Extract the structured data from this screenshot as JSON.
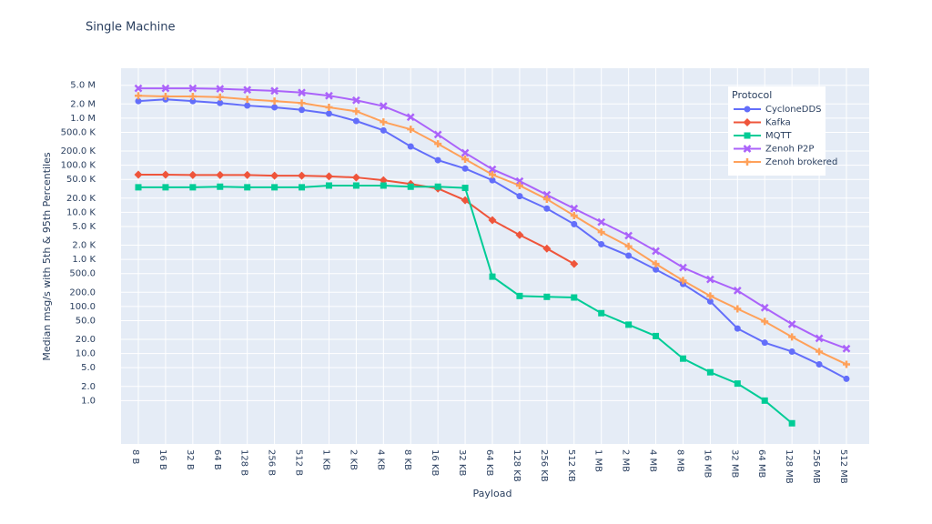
{
  "chart_data": {
    "type": "line",
    "title": "Single Machine",
    "x_label": "Payload",
    "y_label": "Median msg/s with 5th & 95th Percentiles",
    "log_y": true,
    "grid": true,
    "legend_title": "Protocol",
    "legend_position": "top-right",
    "categories": [
      "8 B",
      "16 B",
      "32 B",
      "64 B",
      "128 B",
      "256 B",
      "512 B",
      "1 KB",
      "2 KB",
      "4 KB",
      "8 KB",
      "16 KB",
      "32 KB",
      "64 KB",
      "128 KB",
      "256 KB",
      "512 KB",
      "1 MB",
      "2 MB",
      "4 MB",
      "8 MB",
      "16 MB",
      "32 MB",
      "64 MB",
      "128 MB",
      "256 MB",
      "512 MB"
    ],
    "ylim": [
      0.12,
      11500000
    ],
    "yticks": [
      {
        "value": 5000000,
        "label": "5.0 M"
      },
      {
        "value": 2000000,
        "label": "2.0 M"
      },
      {
        "value": 1000000,
        "label": "1.0 M"
      },
      {
        "value": 500000,
        "label": "500.0 K"
      },
      {
        "value": 200000,
        "label": "200.0 K"
      },
      {
        "value": 100000,
        "label": "100.0 K"
      },
      {
        "value": 50000,
        "label": "50.0 K"
      },
      {
        "value": 20000,
        "label": "20.0 K"
      },
      {
        "value": 10000,
        "label": "10.0 K"
      },
      {
        "value": 5000,
        "label": "5.0 K"
      },
      {
        "value": 2000,
        "label": "2.0 K"
      },
      {
        "value": 1000,
        "label": "1.0 K"
      },
      {
        "value": 500,
        "label": "500.0"
      },
      {
        "value": 200,
        "label": "200.0"
      },
      {
        "value": 100,
        "label": "100.0"
      },
      {
        "value": 50,
        "label": "50.0"
      },
      {
        "value": 20,
        "label": "20.0"
      },
      {
        "value": 10,
        "label": "10.0"
      },
      {
        "value": 5,
        "label": "5.0"
      },
      {
        "value": 2,
        "label": "2.0"
      },
      {
        "value": 1,
        "label": "1.0"
      }
    ],
    "series": [
      {
        "name": "CycloneDDS",
        "color": "#636efa",
        "marker": "circle",
        "values": [
          2300000,
          2500000,
          2300000,
          2100000,
          1850000,
          1700000,
          1500000,
          1250000,
          870000,
          550000,
          250000,
          128000,
          85000,
          48000,
          22000,
          12000,
          5600,
          2100,
          1200,
          610,
          300,
          128,
          34,
          17,
          11,
          5.9,
          2.9
        ]
      },
      {
        "name": "Kafka",
        "color": "#EF553B",
        "marker": "diamond",
        "values": [
          63000,
          63000,
          62000,
          62000,
          62000,
          60000,
          60000,
          58000,
          55000,
          48000,
          40000,
          32000,
          18000,
          6800,
          3300,
          1700,
          800,
          null,
          null,
          null,
          null,
          null,
          null,
          null,
          null,
          null,
          null
        ]
      },
      {
        "name": "MQTT",
        "color": "#00cc96",
        "marker": "square",
        "values": [
          34000,
          34000,
          34000,
          35000,
          34000,
          34000,
          34000,
          37000,
          37000,
          37000,
          35000,
          35000,
          33000,
          430,
          167,
          160,
          155,
          72,
          41,
          23.5,
          7.8,
          4.0,
          2.3,
          1.0,
          0.33,
          null,
          null
        ]
      },
      {
        "name": "Zenoh P2P",
        "color": "#ab63fa",
        "marker": "x",
        "values": [
          4300000,
          4300000,
          4300000,
          4200000,
          4000000,
          3800000,
          3500000,
          3000000,
          2400000,
          1800000,
          1050000,
          450000,
          183000,
          82000,
          46000,
          23500,
          12000,
          6200,
          3200,
          1500,
          670,
          375,
          218,
          94,
          42,
          21,
          12.7
        ]
      },
      {
        "name": "Zenoh brokered",
        "color": "#FFA15A",
        "marker": "cross",
        "values": [
          3000000,
          2900000,
          2900000,
          2800000,
          2500000,
          2300000,
          2100000,
          1700000,
          1400000,
          830000,
          580000,
          285000,
          134000,
          63000,
          37000,
          19000,
          8500,
          3800,
          1900,
          800,
          355,
          167,
          89,
          48,
          22.5,
          11,
          5.9
        ]
      }
    ]
  }
}
